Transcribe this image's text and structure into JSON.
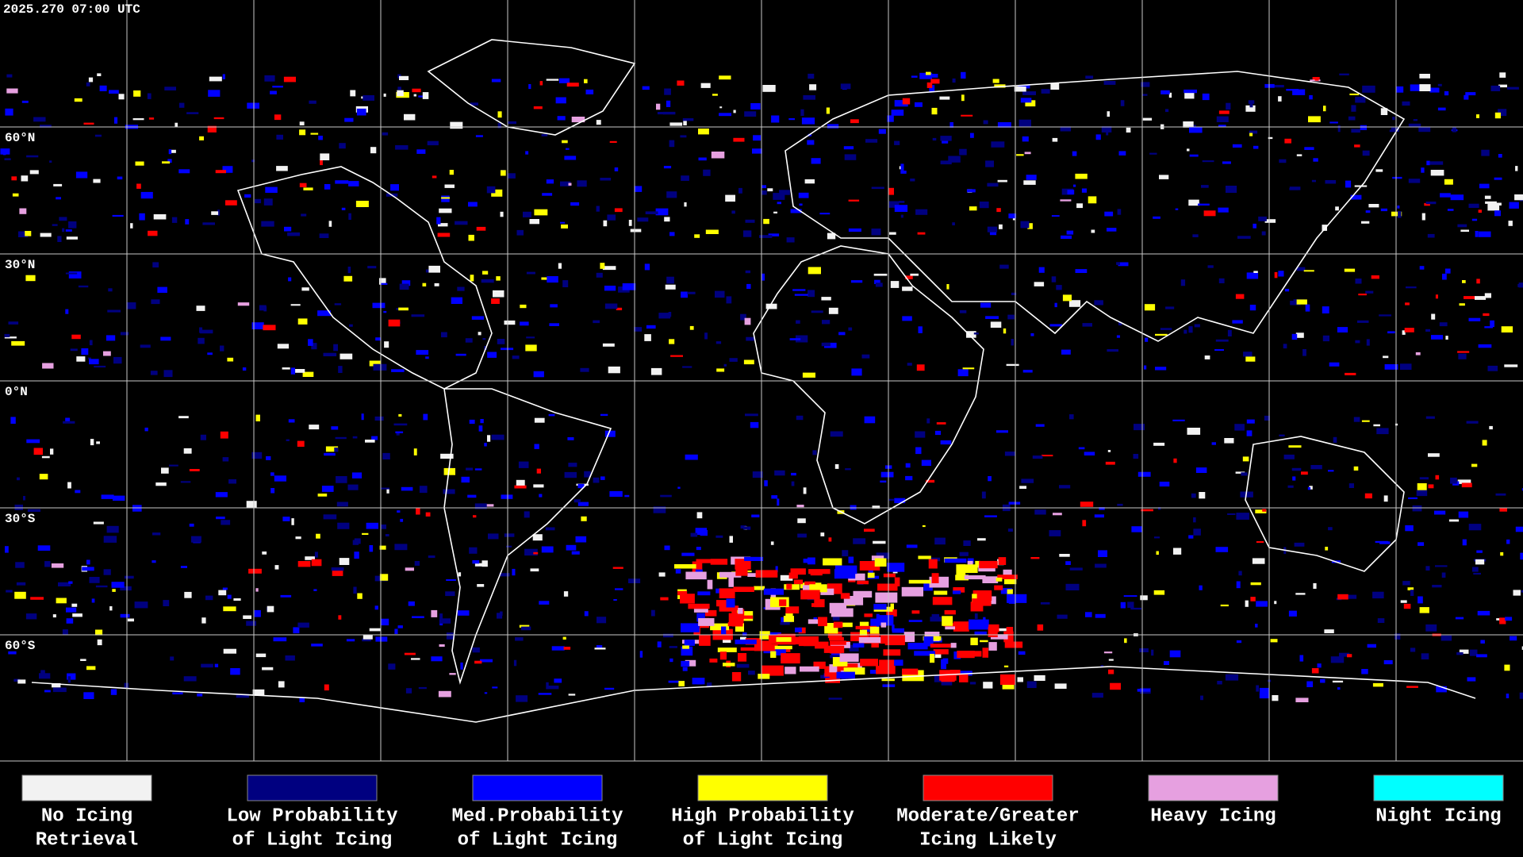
{
  "timestamp": "2025.270 07:00 UTC",
  "map": {
    "latitude_labels": [
      "60°N",
      "30°N",
      "0°N",
      "30°S",
      "60°S"
    ]
  },
  "legend": [
    {
      "label": [
        "No Icing",
        "Retrieval"
      ],
      "color": "#f2f2f2"
    },
    {
      "label": [
        "Low Probability",
        "of Light Icing"
      ],
      "color": "#000080"
    },
    {
      "label": [
        "Med.Probability",
        "of Light Icing"
      ],
      "color": "#0000ff"
    },
    {
      "label": [
        "High Probability",
        "of Light Icing"
      ],
      "color": "#ffff00"
    },
    {
      "label": [
        "Moderate/Greater",
        "Icing Likely"
      ],
      "color": "#ff0000"
    },
    {
      "label": [
        "Heavy Icing"
      ],
      "color": "#e6a0e0"
    },
    {
      "label": [
        "Night Icing"
      ],
      "color": "#00ffff"
    }
  ]
}
